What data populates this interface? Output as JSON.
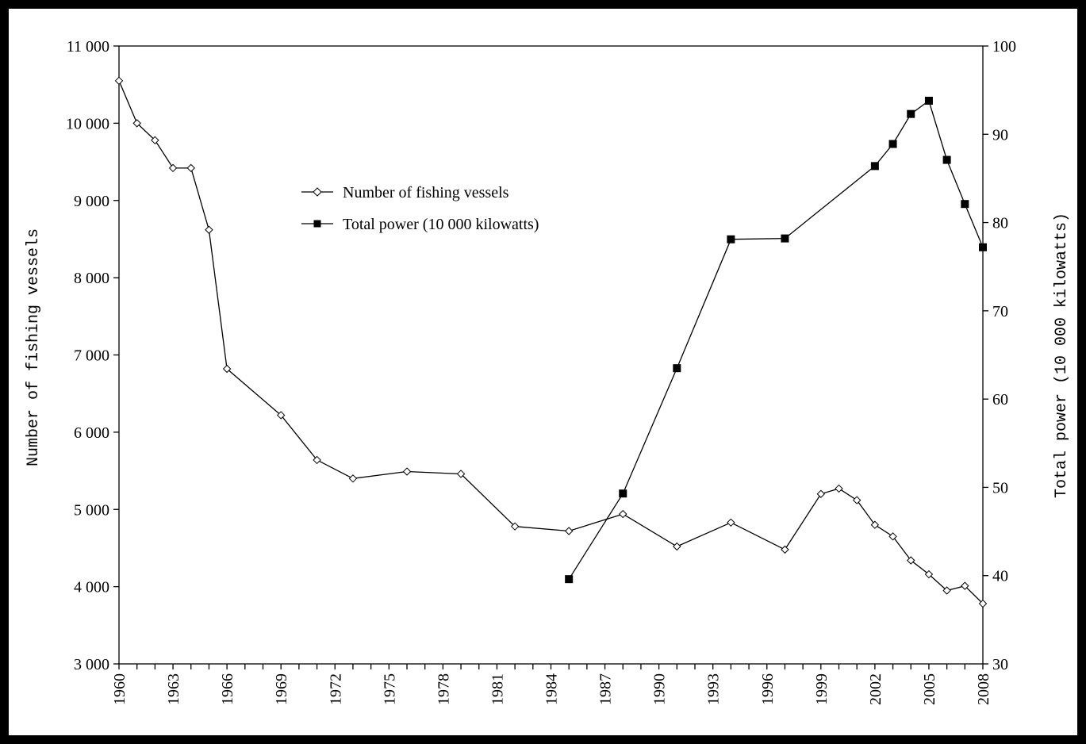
{
  "chart_data": {
    "type": "line",
    "title": "",
    "xlabel": "",
    "ylabel": "Number of fishing vessels",
    "y2label": "Total power (10 000 kilowatts)",
    "ylim": [
      3000,
      11000
    ],
    "y2lim": [
      30,
      100
    ],
    "xlim": [
      1960,
      2008
    ],
    "y_ticks": [
      {
        "value": 3000,
        "label": "3 000"
      },
      {
        "value": 4000,
        "label": "4 000"
      },
      {
        "value": 5000,
        "label": "5 000"
      },
      {
        "value": 6000,
        "label": "6 000"
      },
      {
        "value": 7000,
        "label": "7 000"
      },
      {
        "value": 8000,
        "label": "8 000"
      },
      {
        "value": 9000,
        "label": "9 000"
      },
      {
        "value": 10000,
        "label": "10 000"
      },
      {
        "value": 11000,
        "label": "11 000"
      }
    ],
    "y2_ticks": [
      {
        "value": 30,
        "label": "30"
      },
      {
        "value": 40,
        "label": "40"
      },
      {
        "value": 50,
        "label": "50"
      },
      {
        "value": 60,
        "label": "60"
      },
      {
        "value": 70,
        "label": "70"
      },
      {
        "value": 80,
        "label": "80"
      },
      {
        "value": 90,
        "label": "90"
      },
      {
        "value": 100,
        "label": "100"
      }
    ],
    "x_tick_labels": [
      "1960",
      "1963",
      "1966",
      "1969",
      "1972",
      "1975",
      "1978",
      "1981",
      "1984",
      "1987",
      "1990",
      "1993",
      "1996",
      "1999",
      "2002",
      "2005",
      "2008"
    ],
    "grid": false,
    "legend_position": "upper-left-center",
    "series": [
      {
        "name": "Number of fishing vessels",
        "axis": "left",
        "marker": "open-diamond",
        "color": "#000000",
        "x": [
          1960,
          1961,
          1962,
          1963,
          1964,
          1965,
          1966,
          1969,
          1971,
          1973,
          1976,
          1979,
          1982,
          1985,
          1988,
          1991,
          1994,
          1997,
          1999,
          2000,
          2001,
          2002,
          2003,
          2004,
          2005,
          2006,
          2007,
          2008
        ],
        "y": [
          10550,
          10000,
          9780,
          9420,
          9420,
          8620,
          6820,
          6220,
          5640,
          5400,
          5490,
          5460,
          4780,
          4720,
          4940,
          4520,
          4830,
          4480,
          5200,
          5270,
          5120,
          4800,
          4650,
          4340,
          4160,
          3950,
          4010,
          3780
        ]
      },
      {
        "name": "Total power (10 000 kilowatts)",
        "axis": "right",
        "marker": "filled-square",
        "color": "#000000",
        "x": [
          1985,
          1988,
          1991,
          1994,
          1997,
          2002,
          2003,
          2004,
          2005,
          2006,
          2007,
          2008
        ],
        "y": [
          39.6,
          49.3,
          63.5,
          78.1,
          78.2,
          86.4,
          88.9,
          92.3,
          93.8,
          87.1,
          82.1,
          77.2
        ]
      }
    ]
  }
}
